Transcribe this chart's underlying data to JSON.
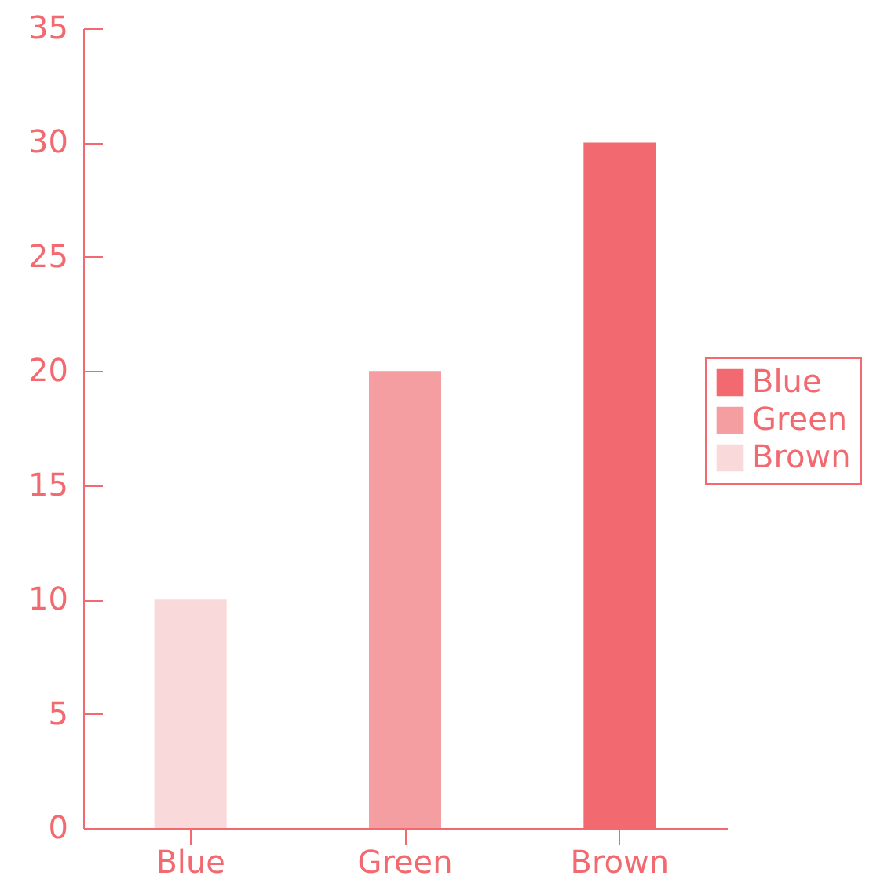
{
  "chart_data": {
    "type": "bar",
    "categories": [
      "Blue",
      "Green",
      "Brown"
    ],
    "series": [
      {
        "name": "Blue",
        "color": "#f26a70",
        "values": [
          null,
          null,
          30
        ]
      },
      {
        "name": "Green",
        "color": "#f59ea2",
        "values": [
          null,
          20,
          null
        ]
      },
      {
        "name": "Brown",
        "color": "#fad9da",
        "values": [
          10,
          null,
          null
        ]
      }
    ],
    "ylim": [
      0,
      35
    ],
    "yticks": [
      0,
      5,
      10,
      15,
      20,
      25,
      30,
      35
    ],
    "grid": false,
    "legend": "right"
  }
}
